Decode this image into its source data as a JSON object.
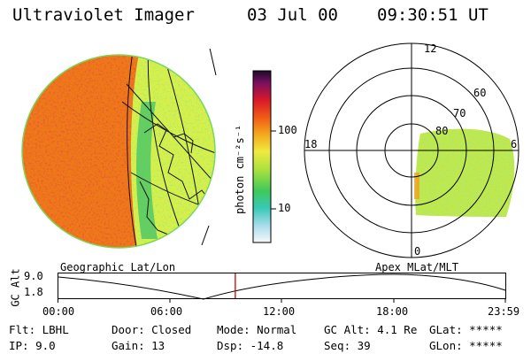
{
  "header": {
    "instrument": "Ultraviolet Imager",
    "date": "03 Jul 00",
    "time": "09:30:51 UT"
  },
  "colorbar": {
    "unit_label": "photon cm⁻²s⁻¹",
    "ticks": [
      "100",
      "10"
    ]
  },
  "polar_plot": {
    "mlt_labels": {
      "top": "12",
      "left": "18",
      "right": "6",
      "bottom": "0"
    },
    "lat_labels": [
      "60",
      "70",
      "80"
    ]
  },
  "globe": {
    "label": "Geographic Lat/Lon"
  },
  "polar_caption": "Apex MLat/MLT",
  "altitude_plot": {
    "ylabel": "GC Alt",
    "ticks": [
      "9.0",
      "1.8"
    ],
    "x_ticks": [
      "00:00",
      "06:00",
      "12:00",
      "18:00",
      "23:59"
    ],
    "current_time_fraction": 0.396,
    "marker_color": "#cc0000"
  },
  "info": {
    "filter": "Flt: LBHL",
    "ip": "IP:  9.0",
    "door": "Door: Closed",
    "gain": "Gain: 13",
    "mode": "Mode: Normal",
    "dsp": "Dsp:  -14.8",
    "gc_alt": "GC Alt: 4.1 Re",
    "seq": "Seq: 39",
    "glat": "GLat: *****",
    "glon": "GLon: *****"
  }
}
